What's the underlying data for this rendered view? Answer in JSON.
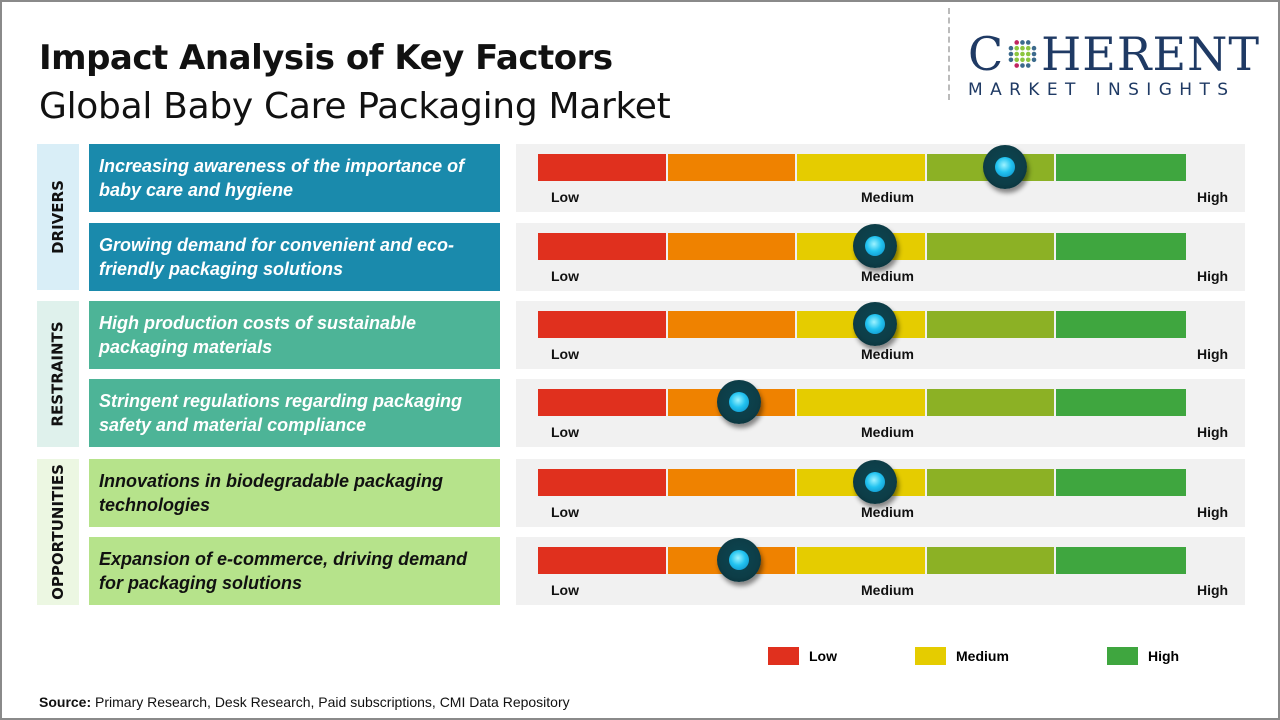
{
  "header": {
    "title": "Impact Analysis of Key Factors",
    "subtitle": "Global Baby Care Packaging Market"
  },
  "logo": {
    "main_left": "C",
    "main_right": "HERENT",
    "sub": "MARKET INSIGHTS"
  },
  "scale": {
    "low": "Low",
    "medium": "Medium",
    "high": "High",
    "segment_colors": [
      "#e0301e",
      "#ef8200",
      "#e5cc00",
      "#8cb125",
      "#3fa63f"
    ]
  },
  "knob_color": "#22c3f0",
  "categories": [
    {
      "label": "DRIVERS",
      "bg": "#d9eef7",
      "factor_bg": "#1a8aac",
      "text_color": "#ffffff"
    },
    {
      "label": "RESTRAINTS",
      "bg": "#dff1ec",
      "factor_bg": "#4db497",
      "text_color": "#ffffff"
    },
    {
      "label": "OPPORTUNITIES",
      "bg": "#ecf7e2",
      "factor_bg": "#b6e38b",
      "text_color": "#111111"
    }
  ],
  "factors": [
    {
      "category": 0,
      "text": "Increasing awareness of the importance of baby care and hygiene",
      "impact": 0.72
    },
    {
      "category": 0,
      "text": "Growing demand for convenient and eco-friendly packaging solutions",
      "impact": 0.52
    },
    {
      "category": 1,
      "text": "High production costs of sustainable packaging materials",
      "impact": 0.52
    },
    {
      "category": 1,
      "text": "Stringent regulations regarding packaging safety and material compliance",
      "impact": 0.31
    },
    {
      "category": 2,
      "text": "Innovations in biodegradable packaging technologies",
      "impact": 0.52
    },
    {
      "category": 2,
      "text": "Expansion of e-commerce, driving demand for packaging solutions",
      "impact": 0.31
    }
  ],
  "legend": [
    {
      "label": "Low",
      "color": "#e0301e"
    },
    {
      "label": "Medium",
      "color": "#e5cc00"
    },
    {
      "label": "High",
      "color": "#3fa63f"
    }
  ],
  "source": {
    "label": "Source:",
    "text": " Primary Research, Desk Research, Paid subscriptions, CMI Data Repository"
  }
}
